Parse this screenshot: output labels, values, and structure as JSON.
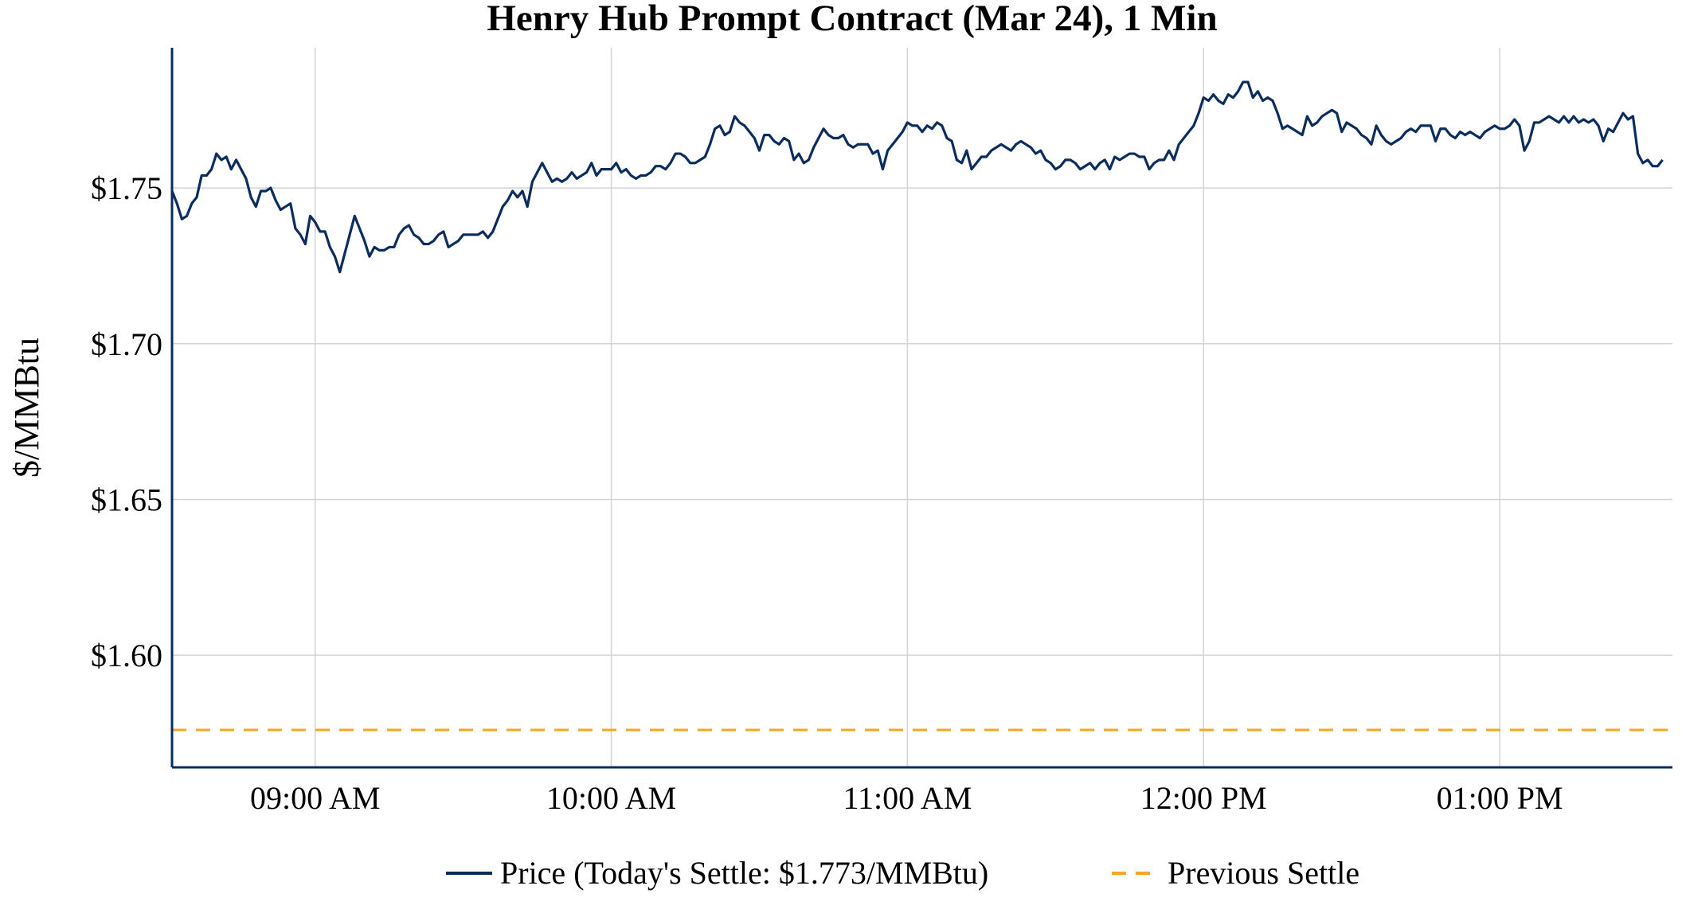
{
  "chart_data": {
    "type": "line",
    "title": "Henry Hub Prompt Contract (Mar 24), 1 Min",
    "xlabel": "",
    "ylabel": "$/MMBtu",
    "x_ticks": [
      "09:00 AM",
      "10:00 AM",
      "11:00 AM",
      "12:00 PM",
      "01:00 PM"
    ],
    "y_ticks": [
      "$1.60",
      "$1.65",
      "$1.70",
      "$1.75"
    ],
    "y_tick_values": [
      1.6,
      1.65,
      1.7,
      1.75
    ],
    "x_tick_minutes": [
      540,
      600,
      660,
      720,
      780
    ],
    "xlim_minutes": [
      511,
      815
    ],
    "ylim": [
      1.564,
      1.795
    ],
    "grid": true,
    "legend_position": "bottom-center",
    "colors": {
      "price": "#0b2d5e",
      "previous_settle": "#f5a623",
      "grid": "#d3d3d3",
      "axis": "#0b2d5e"
    },
    "series": [
      {
        "name": "Price (Today's Settle: $1.773/MMBtu)",
        "style": "solid",
        "x_start": "08:31 AM",
        "interval": "1 min",
        "values": [
          1.749,
          1.745,
          1.74,
          1.741,
          1.745,
          1.747,
          1.754,
          1.754,
          1.756,
          1.761,
          1.759,
          1.76,
          1.756,
          1.759,
          1.756,
          1.753,
          1.747,
          1.744,
          1.749,
          1.749,
          1.75,
          1.746,
          1.743,
          1.744,
          1.745,
          1.737,
          1.735,
          1.732,
          1.741,
          1.739,
          1.736,
          1.736,
          1.731,
          1.728,
          1.723,
          1.729,
          1.735,
          1.741,
          1.737,
          1.733,
          1.728,
          1.731,
          1.73,
          1.73,
          1.731,
          1.731,
          1.735,
          1.737,
          1.738,
          1.735,
          1.734,
          1.732,
          1.732,
          1.733,
          1.735,
          1.736,
          1.731,
          1.732,
          1.733,
          1.735,
          1.735,
          1.735,
          1.735,
          1.736,
          1.734,
          1.736,
          1.74,
          1.744,
          1.746,
          1.749,
          1.747,
          1.749,
          1.744,
          1.752,
          1.755,
          1.758,
          1.755,
          1.752,
          1.753,
          1.752,
          1.753,
          1.755,
          1.753,
          1.754,
          1.755,
          1.758,
          1.754,
          1.756,
          1.756,
          1.756,
          1.758,
          1.755,
          1.756,
          1.754,
          1.753,
          1.754,
          1.754,
          1.755,
          1.757,
          1.757,
          1.756,
          1.758,
          1.761,
          1.761,
          1.76,
          1.758,
          1.758,
          1.759,
          1.76,
          1.764,
          1.769,
          1.77,
          1.767,
          1.768,
          1.773,
          1.771,
          1.77,
          1.768,
          1.766,
          1.762,
          1.767,
          1.767,
          1.765,
          1.764,
          1.766,
          1.765,
          1.759,
          1.761,
          1.758,
          1.759,
          1.763,
          1.766,
          1.769,
          1.767,
          1.766,
          1.766,
          1.767,
          1.764,
          1.763,
          1.764,
          1.764,
          1.764,
          1.761,
          1.762,
          1.756,
          1.762,
          1.764,
          1.766,
          1.768,
          1.771,
          1.77,
          1.77,
          1.768,
          1.77,
          1.769,
          1.771,
          1.77,
          1.766,
          1.765,
          1.759,
          1.758,
          1.762,
          1.756,
          1.758,
          1.76,
          1.76,
          1.762,
          1.763,
          1.764,
          1.763,
          1.762,
          1.764,
          1.765,
          1.764,
          1.763,
          1.761,
          1.762,
          1.759,
          1.758,
          1.756,
          1.757,
          1.759,
          1.759,
          1.758,
          1.756,
          1.757,
          1.758,
          1.756,
          1.758,
          1.759,
          1.756,
          1.76,
          1.759,
          1.76,
          1.761,
          1.761,
          1.76,
          1.76,
          1.756,
          1.758,
          1.759,
          1.759,
          1.762,
          1.759,
          1.764,
          1.766,
          1.768,
          1.77,
          1.774,
          1.779,
          1.778,
          1.78,
          1.778,
          1.777,
          1.78,
          1.779,
          1.781,
          1.784,
          1.784,
          1.779,
          1.781,
          1.778,
          1.779,
          1.778,
          1.774,
          1.769,
          1.77,
          1.769,
          1.768,
          1.767,
          1.773,
          1.77,
          1.771,
          1.773,
          1.774,
          1.775,
          1.774,
          1.768,
          1.771,
          1.77,
          1.769,
          1.767,
          1.766,
          1.764,
          1.77,
          1.767,
          1.765,
          1.764,
          1.765,
          1.766,
          1.768,
          1.769,
          1.768,
          1.77,
          1.77,
          1.77,
          1.765,
          1.769,
          1.769,
          1.767,
          1.766,
          1.768,
          1.767,
          1.768,
          1.767,
          1.766,
          1.768,
          1.769,
          1.77,
          1.769,
          1.769,
          1.77,
          1.772,
          1.77,
          1.762,
          1.765,
          1.771,
          1.771,
          1.772,
          1.773,
          1.772,
          1.771,
          1.773,
          1.771,
          1.773,
          1.771,
          1.772,
          1.771,
          1.772,
          1.77,
          1.765,
          1.769,
          1.768,
          1.771,
          1.774,
          1.772,
          1.773,
          1.761,
          1.758,
          1.759,
          1.757,
          1.757,
          1.759
        ]
      },
      {
        "name": "Previous Settle",
        "style": "dashed",
        "values": [
          1.576
        ]
      }
    ]
  }
}
